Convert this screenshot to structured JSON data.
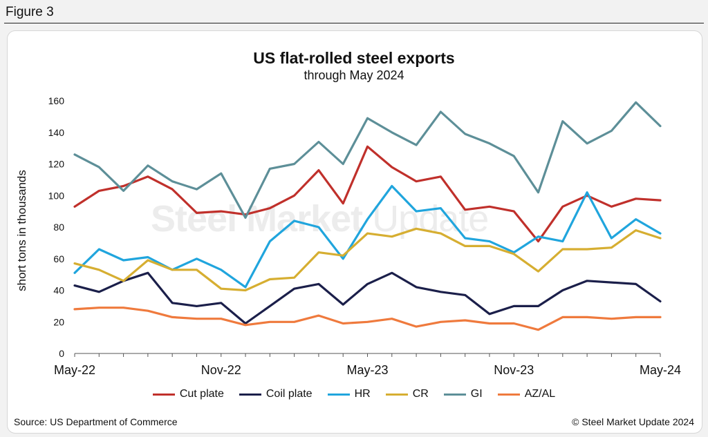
{
  "figure_label": "Figure 3",
  "source": "Source: US Department of Commerce",
  "copyright": "© Steel Market Update 2024",
  "watermark": {
    "bold": "Steel Market",
    "light": "Update"
  },
  "chart_data": {
    "type": "line",
    "title": "US flat-rolled steel exports",
    "subtitle": "through May 2024",
    "xlabel": "",
    "ylabel": "short tons in thousands",
    "ylim": [
      0,
      160
    ],
    "yticks": [
      0,
      20,
      40,
      60,
      80,
      100,
      120,
      140,
      160
    ],
    "x_tick_labels": [
      {
        "index": 0,
        "label": "May-22"
      },
      {
        "index": 6,
        "label": "Nov-22"
      },
      {
        "index": 12,
        "label": "May-23"
      },
      {
        "index": 18,
        "label": "Nov-23"
      },
      {
        "index": 24,
        "label": "May-24"
      }
    ],
    "categories": [
      "May-22",
      "Jun-22",
      "Jul-22",
      "Aug-22",
      "Sep-22",
      "Oct-22",
      "Nov-22",
      "Dec-22",
      "Jan-23",
      "Feb-23",
      "Mar-23",
      "Apr-23",
      "May-23",
      "Jun-23",
      "Jul-23",
      "Aug-23",
      "Sep-23",
      "Oct-23",
      "Nov-23",
      "Dec-23",
      "Jan-24",
      "Feb-24",
      "Mar-24",
      "Apr-24",
      "May-24"
    ],
    "grid": false,
    "legend_position": "bottom",
    "series": [
      {
        "name": "Cut plate",
        "color": "#c0302b",
        "values": [
          93,
          103,
          106,
          112,
          104,
          89,
          90,
          88,
          92,
          100,
          116,
          95,
          131,
          118,
          109,
          112,
          91,
          93,
          90,
          71,
          93,
          100,
          93,
          98,
          97
        ]
      },
      {
        "name": "Coil plate",
        "color": "#1b1f4a",
        "values": [
          43,
          39,
          46,
          51,
          32,
          30,
          32,
          19,
          30,
          41,
          44,
          31,
          44,
          51,
          42,
          39,
          37,
          25,
          30,
          30,
          40,
          46,
          45,
          44,
          33
        ]
      },
      {
        "name": "HR",
        "color": "#20a5dd",
        "values": [
          51,
          66,
          59,
          61,
          53,
          60,
          53,
          42,
          71,
          84,
          80,
          60,
          85,
          106,
          90,
          92,
          73,
          71,
          64,
          74,
          71,
          102,
          73,
          85,
          76
        ]
      },
      {
        "name": "CR",
        "color": "#d6ae31",
        "values": [
          57,
          53,
          46,
          59,
          53,
          53,
          41,
          40,
          47,
          48,
          64,
          62,
          76,
          74,
          79,
          76,
          68,
          68,
          63,
          52,
          66,
          66,
          67,
          78,
          73
        ]
      },
      {
        "name": "GI",
        "color": "#5d8f98",
        "values": [
          126,
          118,
          103,
          119,
          109,
          104,
          114,
          86,
          117,
          120,
          134,
          120,
          149,
          140,
          132,
          153,
          139,
          133,
          125,
          102,
          147,
          133,
          141,
          159,
          144
        ]
      },
      {
        "name": "AZ/AL",
        "color": "#ef7a3d",
        "values": [
          28,
          29,
          29,
          27,
          23,
          22,
          22,
          18,
          20,
          20,
          24,
          19,
          20,
          22,
          17,
          20,
          21,
          19,
          19,
          15,
          23,
          23,
          22,
          23,
          23
        ]
      }
    ]
  }
}
